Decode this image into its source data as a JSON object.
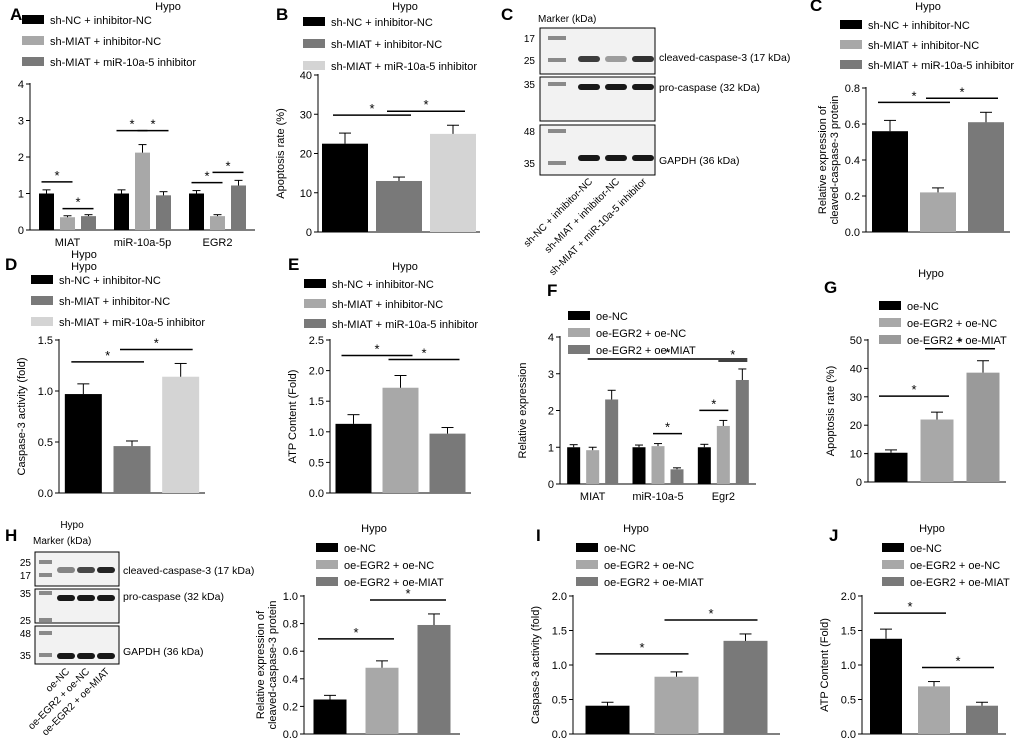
{
  "colors": {
    "black": "#000000",
    "gray_light": "#a8a8a8",
    "gray_mid": "#797979",
    "gray_pale": "#d4d4d4",
    "gray_c": "#9a9a9a",
    "blot_bg": "#f2f2f2"
  },
  "panel_letters": [
    "A",
    "B",
    "C",
    "D",
    "E",
    "F",
    "G",
    "H",
    "I",
    "J"
  ],
  "sig_mark": "*",
  "panelC_blot": {
    "marker_title": "Marker (kDa)",
    "marker_values": [
      "17",
      "25",
      "35",
      "48",
      "35"
    ],
    "band_labels": [
      "cleaved-caspase-3 (17 kDa)",
      "pro-caspase (32 kDa)",
      "GAPDH (36 kDa)"
    ],
    "lanes": [
      "sh-NC + inhibitor-NC",
      "sh-MIAT + inhibitor-NC",
      "sh-MIAT + miR-10a-5 inhibitor"
    ]
  },
  "panelH_blot": {
    "hypo_label": "Hypo",
    "marker_title": "Marker (kDa)",
    "marker_values": [
      "25",
      "17",
      "35",
      "25",
      "48",
      "35"
    ],
    "band_labels": [
      "cleaved-caspase-3 (17 kDa)",
      "pro-caspase (32 kDa)",
      "GAPDH (36 kDa)"
    ],
    "lanes": [
      "oe-NC",
      "oe-EGR2 + oe-NC",
      "oe-EGR2 + oe-MIAT"
    ]
  },
  "chart_data": [
    {
      "panel": "A",
      "type": "bar",
      "title": "Hypo",
      "legend": [
        "sh-NC + inhibitor-NC",
        "sh-MIAT + inhibitor-NC",
        "sh-MIAT + miR-10a-5 inhibitor"
      ],
      "categories": [
        "MIAT",
        "miR-10a-5p",
        "EGR2"
      ],
      "series": [
        {
          "name": "sh-NC + inhibitor-NC",
          "values": [
            1.0,
            1.0,
            1.0
          ],
          "errors": [
            0.1,
            0.1,
            0.08
          ]
        },
        {
          "name": "sh-MIAT + inhibitor-NC",
          "values": [
            0.35,
            2.12,
            0.38
          ],
          "errors": [
            0.04,
            0.22,
            0.04
          ]
        },
        {
          "name": "sh-MIAT + miR-10a-5 inhibitor",
          "values": [
            0.38,
            0.95,
            1.22
          ],
          "errors": [
            0.04,
            0.1,
            0.14
          ]
        }
      ],
      "ylabel": "Relative expression",
      "xlabel": "",
      "ylim": [
        0,
        4
      ],
      "yticks": [
        "0",
        "1",
        "2",
        "3",
        "4"
      ]
    },
    {
      "panel": "B",
      "type": "bar",
      "title": "Hypo",
      "legend": [
        "sh-NC + inhibitor-NC",
        "sh-MIAT + inhibitor-NC",
        "sh-MIAT + miR-10a-5 inhibitor"
      ],
      "categories": [
        "sh-NC + inhibitor-NC",
        "sh-MIAT + inhibitor-NC",
        "sh-MIAT + miR-10a-5 inhibitor"
      ],
      "values": [
        22.5,
        13.0,
        25.0
      ],
      "errors": [
        2.7,
        1.0,
        2.2
      ],
      "ylabel": "Apoptosis rate (%)",
      "xlabel": "",
      "ylim": [
        0,
        40
      ],
      "yticks": [
        "0",
        "10",
        "20",
        "30",
        "40"
      ]
    },
    {
      "panel": "C",
      "type": "bar",
      "title": "Hypo",
      "legend": [
        "sh-NC + inhibitor-NC",
        "sh-MIAT + inhibitor-NC",
        "sh-MIAT + miR-10a-5 inhibitor"
      ],
      "categories": [
        "sh-NC + inhibitor-NC",
        "sh-MIAT + inhibitor-NC",
        "sh-MIAT + miR-10a-5 inhibitor"
      ],
      "values": [
        0.56,
        0.22,
        0.61
      ],
      "errors": [
        0.06,
        0.025,
        0.055
      ],
      "ylabel": "Relative expression of cleaved-caspase-3 protein",
      "xlabel": "",
      "ylim": [
        0,
        0.8
      ],
      "yticks": [
        "0.0",
        "0.2",
        "0.4",
        "0.6",
        "0.8"
      ]
    },
    {
      "panel": "D",
      "type": "bar",
      "title": "Hypo",
      "subtitle": "Hypo",
      "legend": [
        "sh-NC + inhibitor-NC",
        "sh-MIAT + inhibitor-NC",
        "sh-MIAT + miR-10a-5 inhibitor"
      ],
      "categories": [
        "sh-NC + inhibitor-NC",
        "sh-MIAT + inhibitor-NC",
        "sh-MIAT + miR-10a-5 inhibitor"
      ],
      "values": [
        0.97,
        0.46,
        1.14
      ],
      "errors": [
        0.1,
        0.05,
        0.13
      ],
      "ylabel": "Caspase-3 activity (fold)",
      "xlabel": "",
      "ylim": [
        0,
        1.5
      ],
      "yticks": [
        "0.0",
        "0.5",
        "1.0",
        "1.5"
      ]
    },
    {
      "panel": "E",
      "type": "bar",
      "title": "Hypo",
      "legend": [
        "sh-NC + inhibitor-NC",
        "sh-MIAT + inhibitor-NC",
        "sh-MIAT + miR-10a-5 inhibitor"
      ],
      "categories": [
        "sh-NC + inhibitor-NC",
        "sh-MIAT + inhibitor-NC",
        "sh-MIAT + miR-10a-5 inhibitor"
      ],
      "values": [
        1.13,
        1.72,
        0.97
      ],
      "errors": [
        0.15,
        0.2,
        0.1
      ],
      "ylabel": "ATP Content (Fold)",
      "xlabel": "",
      "ylim": [
        0,
        2.5
      ],
      "yticks": [
        "0.0",
        "0.5",
        "1.0",
        "1.5",
        "2.0",
        "2.5"
      ]
    },
    {
      "panel": "F",
      "type": "bar",
      "title": "",
      "legend": [
        "oe-NC",
        "oe-EGR2 + oe-NC",
        "oe-EGR2 + oe-MIAT"
      ],
      "categories": [
        "MIAT",
        "miR-10a-5",
        "Egr2"
      ],
      "series": [
        {
          "name": "oe-NC",
          "values": [
            1.0,
            1.0,
            1.0
          ],
          "errors": [
            0.07,
            0.06,
            0.08
          ]
        },
        {
          "name": "oe-EGR2 + oe-NC",
          "values": [
            0.92,
            1.03,
            1.58
          ],
          "errors": [
            0.08,
            0.07,
            0.15
          ]
        },
        {
          "name": "oe-EGR2 + oe-MIAT",
          "values": [
            2.3,
            0.4,
            2.83
          ],
          "errors": [
            0.25,
            0.04,
            0.3
          ]
        }
      ],
      "ylabel": "Relative expression",
      "xlabel": "",
      "ylim": [
        0,
        4
      ],
      "yticks": [
        "0",
        "1",
        "2",
        "3",
        "4"
      ]
    },
    {
      "panel": "G",
      "type": "bar",
      "title": "Hypo",
      "legend": [
        "oe-NC",
        "oe-EGR2 + oe-NC",
        "oe-EGR2 + oe-MIAT"
      ],
      "categories": [
        "oe-NC",
        "oe-EGR2 + oe-NC",
        "oe-EGR2 + oe-MIAT"
      ],
      "values": [
        10.3,
        22.0,
        38.5
      ],
      "errors": [
        1.0,
        2.6,
        4.2
      ],
      "ylabel": "Apoptosis rate (%)",
      "xlabel": "",
      "ylim": [
        0,
        50
      ],
      "yticks": [
        "0",
        "10",
        "20",
        "30",
        "40",
        "50"
      ]
    },
    {
      "panel": "H",
      "type": "bar",
      "title": "Hypo",
      "legend": [
        "oe-NC",
        "oe-EGR2 + oe-NC",
        "oe-EGR2 + oe-MIAT"
      ],
      "categories": [
        "oe-NC",
        "oe-EGR2 + oe-NC",
        "oe-EGR2 + oe-MIAT"
      ],
      "values": [
        0.25,
        0.48,
        0.79
      ],
      "errors": [
        0.03,
        0.05,
        0.08
      ],
      "ylabel": "Relative expression of cleaved-caspase-3 protein",
      "xlabel": "",
      "ylim": [
        0,
        1.0
      ],
      "yticks": [
        "0.0",
        "0.2",
        "0.4",
        "0.6",
        "0.8",
        "1.0"
      ]
    },
    {
      "panel": "I",
      "type": "bar",
      "title": "Hypo",
      "legend": [
        "oe-NC",
        "oe-EGR2 + oe-NC",
        "oe-EGR2 + oe-MIAT"
      ],
      "categories": [
        "oe-NC",
        "oe-EGR2 + oe-NC",
        "oe-EGR2 + oe-MIAT"
      ],
      "values": [
        0.41,
        0.83,
        1.35
      ],
      "errors": [
        0.05,
        0.07,
        0.1
      ],
      "ylabel": "Caspase-3 activity (fold)",
      "xlabel": "",
      "ylim": [
        0,
        2.0
      ],
      "yticks": [
        "0.0",
        "0.5",
        "1.0",
        "1.5",
        "2.0"
      ]
    },
    {
      "panel": "J",
      "type": "bar",
      "title": "Hypo",
      "legend": [
        "oe-NC",
        "oe-EGR2 + oe-NC",
        "oe-EGR2 + oe-MIAT"
      ],
      "categories": [
        "oe-NC",
        "oe-EGR2 + oe-NC",
        "oe-EGR2 + oe-MIAT"
      ],
      "values": [
        1.38,
        0.69,
        0.41
      ],
      "errors": [
        0.14,
        0.07,
        0.05
      ],
      "ylabel": "ATP Content (Fold)",
      "xlabel": "",
      "ylim": [
        0,
        2.0
      ],
      "yticks": [
        "0.0",
        "0.5",
        "1.0",
        "1.5",
        "2.0"
      ]
    }
  ]
}
